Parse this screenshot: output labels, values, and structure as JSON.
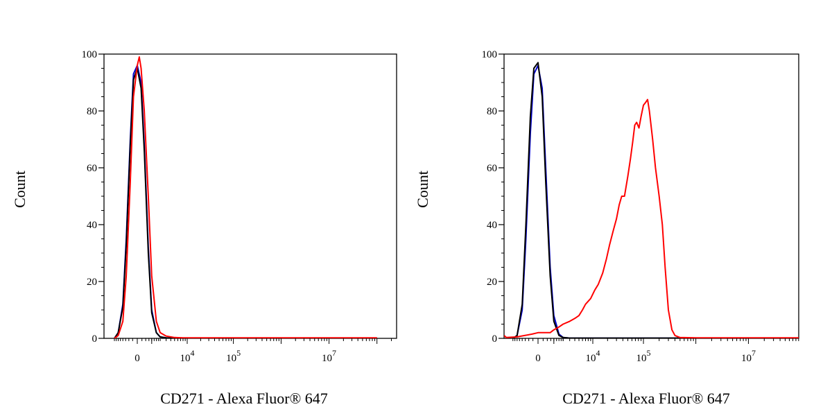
{
  "chart_data": [
    {
      "type": "line",
      "title": "",
      "xlabel": "CD271 - Alexa Fluor® 647",
      "ylabel": "Count",
      "xscale": "biexponential",
      "ylim": [
        0,
        100
      ],
      "y_ticks": [
        "0",
        "20",
        "40",
        "60",
        "80",
        "100"
      ],
      "x_ticks": [
        {
          "value": 0,
          "base": "0",
          "exp": ""
        },
        {
          "value": 10000,
          "base": "10",
          "exp": "4"
        },
        {
          "value": 100000,
          "base": "10",
          "exp": "5"
        },
        {
          "value": 10000000,
          "base": "10",
          "exp": "7"
        }
      ],
      "grid": false,
      "legend": "none",
      "series": [
        {
          "color": "#0000cc",
          "x": [
            -2000,
            -1500,
            -1000,
            -700,
            -400,
            -200,
            0,
            200,
            400,
            700,
            1000,
            1500,
            2000,
            3000,
            5000,
            100000000
          ],
          "y": [
            0,
            2,
            12,
            35,
            70,
            93,
            96,
            90,
            68,
            32,
            10,
            2,
            0.5,
            0.2,
            0.1,
            0.1
          ]
        },
        {
          "color": "#000000",
          "x": [
            -2000,
            -1500,
            -1000,
            -700,
            -400,
            -200,
            0,
            200,
            400,
            700,
            1000,
            1500,
            2000,
            3000,
            5000,
            100000000
          ],
          "y": [
            0,
            2,
            11,
            33,
            68,
            91,
            95,
            88,
            66,
            30,
            9,
            2,
            0.5,
            0.2,
            0.1,
            0.1
          ]
        },
        {
          "color": "#ff0000",
          "x": [
            -2000,
            -1500,
            -1000,
            -700,
            -400,
            -200,
            0,
            100,
            200,
            400,
            700,
            1000,
            1500,
            2000,
            3000,
            5000,
            8000,
            100000000
          ],
          "y": [
            0,
            1,
            6,
            22,
            55,
            85,
            96,
            99,
            95,
            80,
            50,
            22,
            6,
            2,
            0.8,
            0.3,
            0.2,
            0.2
          ]
        }
      ]
    },
    {
      "type": "line",
      "title": "",
      "xlabel": "CD271 - Alexa Fluor® 647",
      "ylabel": "Count",
      "xscale": "biexponential",
      "ylim": [
        0,
        100
      ],
      "y_ticks": [
        "0",
        "20",
        "40",
        "60",
        "80",
        "100"
      ],
      "x_ticks": [
        {
          "value": 0,
          "base": "0",
          "exp": ""
        },
        {
          "value": 10000,
          "base": "10",
          "exp": "4"
        },
        {
          "value": 100000,
          "base": "10",
          "exp": "5"
        },
        {
          "value": 10000000,
          "base": "10",
          "exp": "7"
        }
      ],
      "grid": false,
      "legend": "none",
      "series": [
        {
          "color": "#0000cc",
          "x": [
            -2000,
            -1500,
            -1000,
            -700,
            -400,
            -200,
            0,
            200,
            400,
            700,
            1000,
            1500,
            2000,
            3000,
            100000000
          ],
          "y": [
            0,
            1,
            10,
            35,
            72,
            93,
            96,
            88,
            60,
            25,
            8,
            1.5,
            0.3,
            0.1,
            0.1
          ]
        },
        {
          "color": "#000000",
          "x": [
            -2000,
            -1500,
            -1000,
            -700,
            -400,
            -200,
            0,
            200,
            400,
            700,
            1000,
            1500,
            2000,
            3000,
            100000000
          ],
          "y": [
            0,
            1,
            12,
            40,
            78,
            95,
            97,
            85,
            55,
            22,
            6,
            1,
            0.3,
            0.1,
            0.1
          ]
        },
        {
          "color": "#ff0000",
          "x": [
            -10000,
            -3000,
            -1500,
            -800,
            -300,
            0,
            300,
            700,
            1000,
            1500,
            2000,
            3000,
            4000,
            5000,
            6000,
            7000,
            9000,
            11000,
            13000,
            16000,
            19000,
            22000,
            26000,
            30000,
            34000,
            38000,
            43000,
            50000,
            56000,
            62000,
            68000,
            74000,
            82000,
            90000,
            100000,
            110000,
            120000,
            130000,
            150000,
            170000,
            200000,
            230000,
            260000,
            300000,
            350000,
            400000,
            500000,
            1000000,
            100000000
          ],
          "y": [
            1,
            0.3,
            0.5,
            1,
            1.5,
            2,
            2,
            2,
            3,
            4,
            5,
            6,
            7,
            8,
            10,
            12,
            14,
            17,
            19,
            23,
            28,
            33,
            38,
            42,
            47,
            50,
            50,
            57,
            63,
            69,
            75,
            76,
            74,
            78,
            82,
            83,
            84,
            80,
            70,
            60,
            50,
            40,
            25,
            10,
            3,
            1,
            0.3,
            0.2,
            0.2
          ]
        }
      ]
    }
  ]
}
